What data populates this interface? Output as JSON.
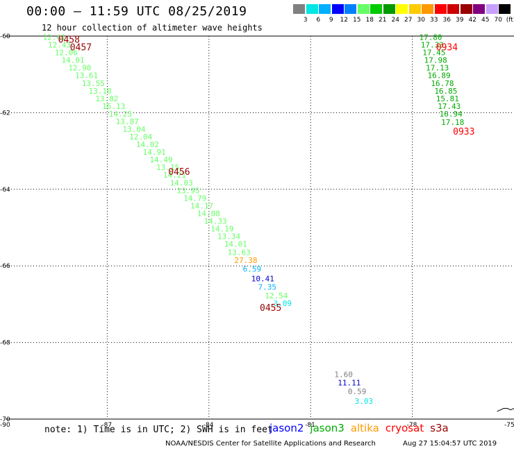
{
  "header": {
    "title": "00:00 – 11:59 UTC 08/25/2019",
    "subtitle": "12 hour collection of altimeter wave heights"
  },
  "scale": {
    "unit": "(ft)",
    "colors": [
      "#808080",
      "#00e5e5",
      "#00b0ff",
      "#0000ff",
      "#0080ff",
      "#66ff66",
      "#00cc00",
      "#009900",
      "#ffff00",
      "#ffcc00",
      "#ff9900",
      "#ff0000",
      "#cc0000",
      "#990000",
      "#800080",
      "#c8a0ff",
      "#000000"
    ],
    "labels": [
      "3",
      "6",
      "9",
      "12",
      "15",
      "18",
      "21",
      "24",
      "27",
      "30",
      "33",
      "36",
      "39",
      "42",
      "45",
      "70"
    ]
  },
  "chart_data": {
    "type": "map",
    "lon_range": [
      -90,
      -75
    ],
    "lat_range": [
      -70,
      -60
    ],
    "x_ticks": [
      -87,
      -84,
      -81,
      -78
    ],
    "x_tick_labels": [
      "-87",
      "-84",
      "-81",
      "-78"
    ],
    "x_end_labels": [
      "-90",
      "-75"
    ],
    "y_ticks": [
      -60,
      -62,
      -64,
      -66,
      -68,
      -70
    ],
    "y_tick_labels": [
      "-60",
      "-62",
      "-64",
      "-66",
      "-68",
      "-70"
    ],
    "grid": true,
    "passes": [
      {
        "label": "0458",
        "color": "#990000",
        "lon": -88.45,
        "lat": -60.1
      },
      {
        "label": "0457",
        "color": "#990000",
        "lon": -88.1,
        "lat": -60.3
      },
      {
        "label": "0456",
        "color": "#990000",
        "lon": -85.2,
        "lat": -63.55
      },
      {
        "label": "0455",
        "color": "#990000",
        "lon": -82.5,
        "lat": -67.1
      },
      {
        "label": "0934",
        "color": "#ff0000",
        "lon": -77.3,
        "lat": -60.3
      },
      {
        "label": "0933",
        "color": "#ff0000",
        "lon": -76.8,
        "lat": -62.5
      }
    ],
    "tracks": [
      {
        "name": "jason3-track-1",
        "points": [
          {
            "v": "12.41",
            "c": "#66ff66",
            "lon": -88.9,
            "lat": -60.1
          },
          {
            "v": "12.43",
            "c": "#66ff66",
            "lon": -88.75,
            "lat": -60.3
          },
          {
            "v": "12.06",
            "c": "#66ff66",
            "lon": -88.55,
            "lat": -60.5
          },
          {
            "v": "14.01",
            "c": "#66ff66",
            "lon": -88.35,
            "lat": -60.7
          },
          {
            "v": "12.90",
            "c": "#66ff66",
            "lon": -88.15,
            "lat": -60.9
          },
          {
            "v": "13.61",
            "c": "#66ff66",
            "lon": -87.95,
            "lat": -61.1
          },
          {
            "v": "13.55",
            "c": "#66ff66",
            "lon": -87.75,
            "lat": -61.3
          },
          {
            "v": "13.10",
            "c": "#66ff66",
            "lon": -87.55,
            "lat": -61.5
          },
          {
            "v": "13.82",
            "c": "#66ff66",
            "lon": -87.35,
            "lat": -61.7
          },
          {
            "v": "16.13",
            "c": "#66ff66",
            "lon": -87.15,
            "lat": -61.9
          },
          {
            "v": "14.23",
            "c": "#66ff66",
            "lon": -86.95,
            "lat": -62.1
          },
          {
            "v": "13.87",
            "c": "#66ff66",
            "lon": -86.75,
            "lat": -62.3
          },
          {
            "v": "13.04",
            "c": "#66ff66",
            "lon": -86.55,
            "lat": -62.5
          },
          {
            "v": "12.04",
            "c": "#66ff66",
            "lon": -86.35,
            "lat": -62.7
          },
          {
            "v": "14.02",
            "c": "#66ff66",
            "lon": -86.15,
            "lat": -62.9
          },
          {
            "v": "14.91",
            "c": "#66ff66",
            "lon": -85.95,
            "lat": -63.1
          },
          {
            "v": "14.49",
            "c": "#66ff66",
            "lon": -85.75,
            "lat": -63.3
          },
          {
            "v": "13.15",
            "c": "#66ff66",
            "lon": -85.55,
            "lat": -63.5
          },
          {
            "v": "14.21",
            "c": "#66ff66",
            "lon": -85.35,
            "lat": -63.7
          },
          {
            "v": "14.03",
            "c": "#66ff66",
            "lon": -85.15,
            "lat": -63.9
          },
          {
            "v": "13.95",
            "c": "#66ff66",
            "lon": -84.95,
            "lat": -64.1
          },
          {
            "v": "14.79",
            "c": "#66ff66",
            "lon": -84.75,
            "lat": -64.3
          },
          {
            "v": "14.17",
            "c": "#66ff66",
            "lon": -84.55,
            "lat": -64.5
          },
          {
            "v": "14.08",
            "c": "#66ff66",
            "lon": -84.35,
            "lat": -64.7
          },
          {
            "v": "14.33",
            "c": "#66ff66",
            "lon": -84.15,
            "lat": -64.9
          },
          {
            "v": "14.19",
            "c": "#66ff66",
            "lon": -83.95,
            "lat": -65.1
          },
          {
            "v": "13.34",
            "c": "#66ff66",
            "lon": -83.75,
            "lat": -65.3
          },
          {
            "v": "14.01",
            "c": "#66ff66",
            "lon": -83.55,
            "lat": -65.5
          },
          {
            "v": "13.63",
            "c": "#66ff66",
            "lon": -83.45,
            "lat": -65.72
          },
          {
            "v": "27.38",
            "c": "#ff9900",
            "lon": -83.25,
            "lat": -65.92
          },
          {
            "v": "6.59",
            "c": "#00b0ff",
            "lon": -83.0,
            "lat": -66.15
          },
          {
            "v": "10.41",
            "c": "#0000cc",
            "lon": -82.75,
            "lat": -66.4
          },
          {
            "v": "7.35",
            "c": "#00b0ff",
            "lon": -82.55,
            "lat": -66.62
          },
          {
            "v": "12.54",
            "c": "#66ff66",
            "lon": -82.35,
            "lat": -66.85
          },
          {
            "v": "3.09",
            "c": "#00e5e5",
            "lon": -82.1,
            "lat": -67.05
          }
        ]
      },
      {
        "name": "jason3-track-2",
        "points": [
          {
            "v": "17.80",
            "c": "#00aa00",
            "lon": -77.8,
            "lat": -60.1
          },
          {
            "v": "17.33",
            "c": "#00aa00",
            "lon": -77.75,
            "lat": -60.3
          },
          {
            "v": "17.45",
            "c": "#00aa00",
            "lon": -77.7,
            "lat": -60.5
          },
          {
            "v": "17.98",
            "c": "#00aa00",
            "lon": -77.65,
            "lat": -60.7
          },
          {
            "v": "17.13",
            "c": "#00aa00",
            "lon": -77.6,
            "lat": -60.9
          },
          {
            "v": "16.89",
            "c": "#00aa00",
            "lon": -77.55,
            "lat": -61.1
          },
          {
            "v": "16.78",
            "c": "#00aa00",
            "lon": -77.45,
            "lat": -61.3
          },
          {
            "v": "16.85",
            "c": "#00aa00",
            "lon": -77.35,
            "lat": -61.5
          },
          {
            "v": "15.81",
            "c": "#00aa00",
            "lon": -77.3,
            "lat": -61.7
          },
          {
            "v": "17.43",
            "c": "#00aa00",
            "lon": -77.25,
            "lat": -61.9
          },
          {
            "v": "16.94",
            "c": "#00aa00",
            "lon": -77.2,
            "lat": -62.1
          },
          {
            "v": "17.18",
            "c": "#00aa00",
            "lon": -77.15,
            "lat": -62.32
          }
        ]
      },
      {
        "name": "track-3",
        "points": [
          {
            "v": "1.60",
            "c": "#808080",
            "lon": -80.3,
            "lat": -68.9
          },
          {
            "v": "11.11",
            "c": "#0000cc",
            "lon": -80.2,
            "lat": -69.12
          },
          {
            "v": "0.59",
            "c": "#808080",
            "lon": -79.9,
            "lat": -69.35
          },
          {
            "v": "3.03",
            "c": "#00e5e5",
            "lon": -79.7,
            "lat": -69.6
          }
        ]
      }
    ],
    "coastline": [
      [
        -75.5,
        -69.8
      ],
      [
        -75.3,
        -69.72
      ],
      [
        -75.2,
        -69.72
      ],
      [
        -75.1,
        -69.76
      ],
      [
        -75.0,
        -69.72
      ]
    ]
  },
  "note": "note: 1) Time is in UTC; 2) SWH is in feet",
  "legend": [
    {
      "name": "jason2",
      "color": "#0000ff"
    },
    {
      "name": "jason3",
      "color": "#00aa00"
    },
    {
      "name": "altika",
      "color": "#ff9900"
    },
    {
      "name": "cryosat",
      "color": "#ff0000"
    },
    {
      "name": "s3a",
      "color": "#990000"
    }
  ],
  "footer": {
    "credit": "NOAA/NESDIS Center for Satellite Applications and Research",
    "timestamp": "Aug 27 15:04:57 UTC 2019"
  }
}
